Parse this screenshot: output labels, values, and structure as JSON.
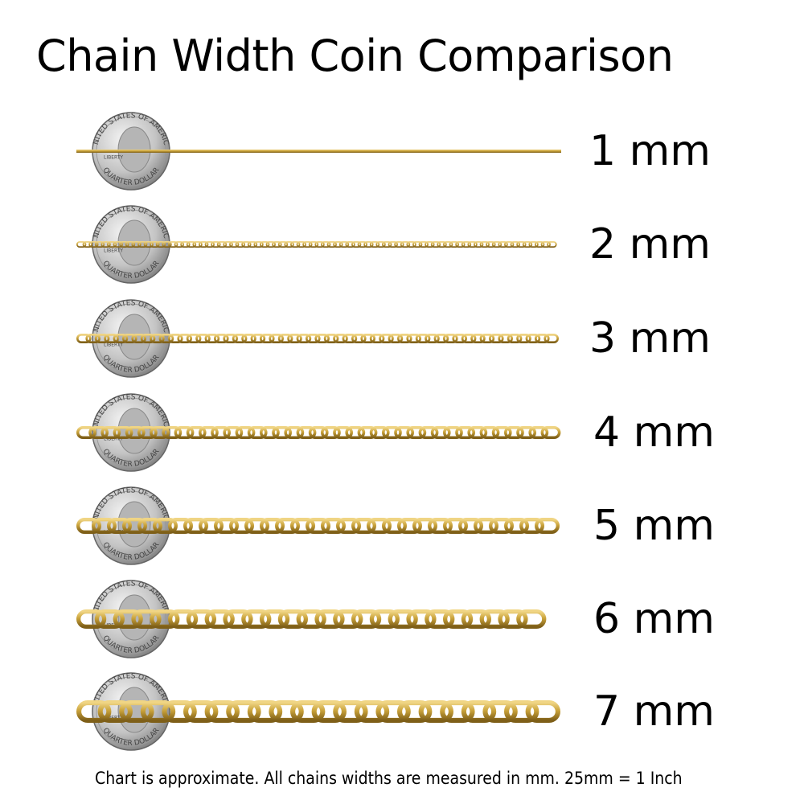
{
  "title": "Chain Width Coin Comparison",
  "coin_lettering": {
    "top": "UNITED STATES OF AMERICA",
    "left": "LIBERTY",
    "bottom": "QUARTER DOLLAR"
  },
  "colors": {
    "gold": "#c9a23a",
    "gold_dark": "#8a6a1c",
    "gold_light": "#ecd07a",
    "coin": "#c8c8c8"
  },
  "rows": [
    {
      "label": "1 mm",
      "width_mm": 1
    },
    {
      "label": "2 mm",
      "width_mm": 2
    },
    {
      "label": "3 mm",
      "width_mm": 3
    },
    {
      "label": "4 mm",
      "width_mm": 4
    },
    {
      "label": "5 mm",
      "width_mm": 5
    },
    {
      "label": "6 mm",
      "width_mm": 6
    },
    {
      "label": "7 mm",
      "width_mm": 7
    }
  ],
  "footer": "Chart is approximate. All chains widths are measured in mm.  25mm = 1 Inch"
}
